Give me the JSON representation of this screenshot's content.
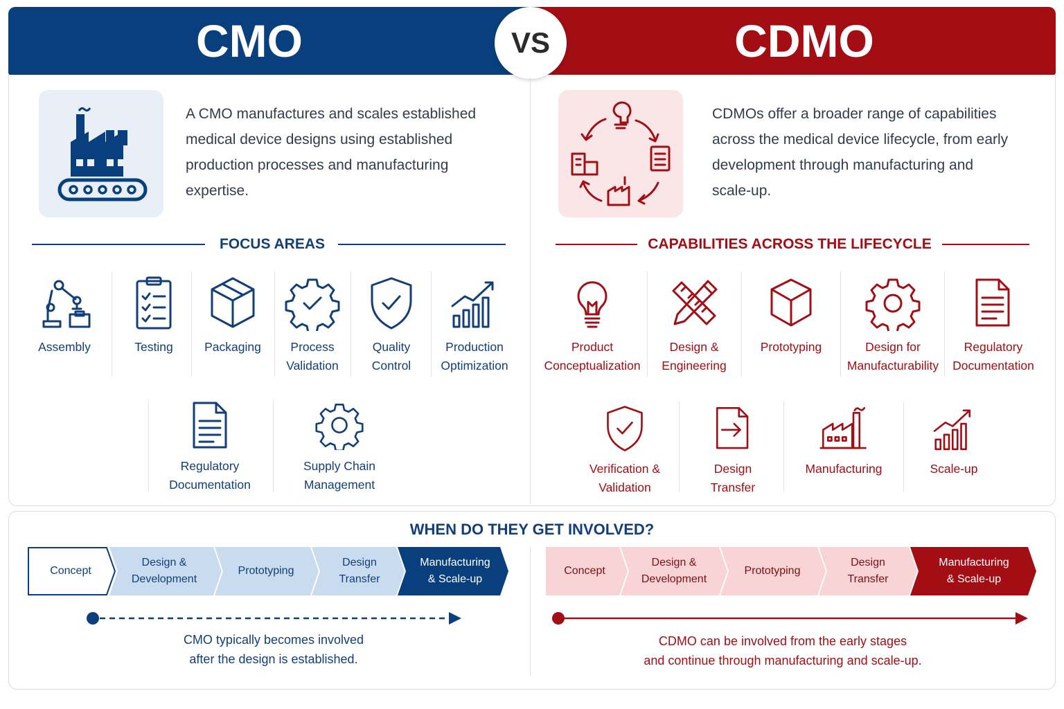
{
  "header": {
    "left_title": "CMO",
    "vs": "VS",
    "right_title": "CDMO"
  },
  "colors": {
    "cmo_blue": "#0a3f7e",
    "cdmo_red": "#a30d14",
    "light_blue": "#c9dcef",
    "light_red": "#f8d4d6"
  },
  "cmo": {
    "icon": "factory-conveyor-icon",
    "description": [
      "A CMO manufactures and scales established",
      "medical device designs using established",
      "production processes and manufacturing",
      "expertise."
    ],
    "section_title": "FOCUS AREAS",
    "items": [
      {
        "icon": "robotic-arm-icon",
        "lines": [
          "Assembly"
        ]
      },
      {
        "icon": "clipboard-checklist-icon",
        "lines": [
          "Testing"
        ]
      },
      {
        "icon": "box-icon",
        "lines": [
          "Packaging"
        ]
      },
      {
        "icon": "gear-check-icon",
        "lines": [
          "Process",
          "Validation"
        ]
      },
      {
        "icon": "shield-check-icon",
        "lines": [
          "Quality",
          "Control"
        ]
      },
      {
        "icon": "growth-chart-icon",
        "lines": [
          "Production",
          "Optimization"
        ]
      },
      {
        "icon": "document-icon",
        "lines": [
          "Regulatory",
          "Documentation"
        ]
      },
      {
        "icon": "gear-icon",
        "lines": [
          "Supply Chain",
          "Management"
        ]
      }
    ]
  },
  "cdmo": {
    "icon": "lifecycle-cycle-icon",
    "description": [
      "CDMOs offer a broader range of capabilities",
      "across the medical device lifecycle, from early",
      "development through manufacturing and",
      "scale-up."
    ],
    "section_title": "CAPABILITIES ACROSS THE LIFECYCLE",
    "items": [
      {
        "icon": "lightbulb-icon",
        "lines": [
          "Product",
          "Conceptualization"
        ]
      },
      {
        "icon": "pencil-ruler-icon",
        "lines": [
          "Design &",
          "Engineering"
        ]
      },
      {
        "icon": "cube-icon",
        "lines": [
          "Prototyping"
        ]
      },
      {
        "icon": "gear-icon",
        "lines": [
          "Design for",
          "Manufacturability"
        ]
      },
      {
        "icon": "document-icon",
        "lines": [
          "Regulatory",
          "Documentation"
        ]
      },
      {
        "icon": "shield-check-icon",
        "lines": [
          "Verification &",
          "Validation"
        ]
      },
      {
        "icon": "transfer-document-icon",
        "lines": [
          "Design",
          "Transfer"
        ]
      },
      {
        "icon": "factory-icon",
        "lines": [
          "Manufacturing"
        ]
      },
      {
        "icon": "growth-chart-icon",
        "lines": [
          "Scale-up"
        ]
      }
    ]
  },
  "involvement": {
    "title": "WHEN DO THEY GET INVOLVED?",
    "stages": [
      [
        "Concept"
      ],
      [
        "Design &",
        "Development"
      ],
      [
        "Prototyping"
      ],
      [
        "Design",
        "Transfer"
      ],
      [
        "Manufacturing",
        "& Scale-up"
      ]
    ],
    "cmo_note": [
      "CMO typically becomes involved",
      "after the design is established."
    ],
    "cdmo_note": [
      "CDMO can be involved from the early stages",
      "and continue through manufacturing and scale-up."
    ]
  }
}
